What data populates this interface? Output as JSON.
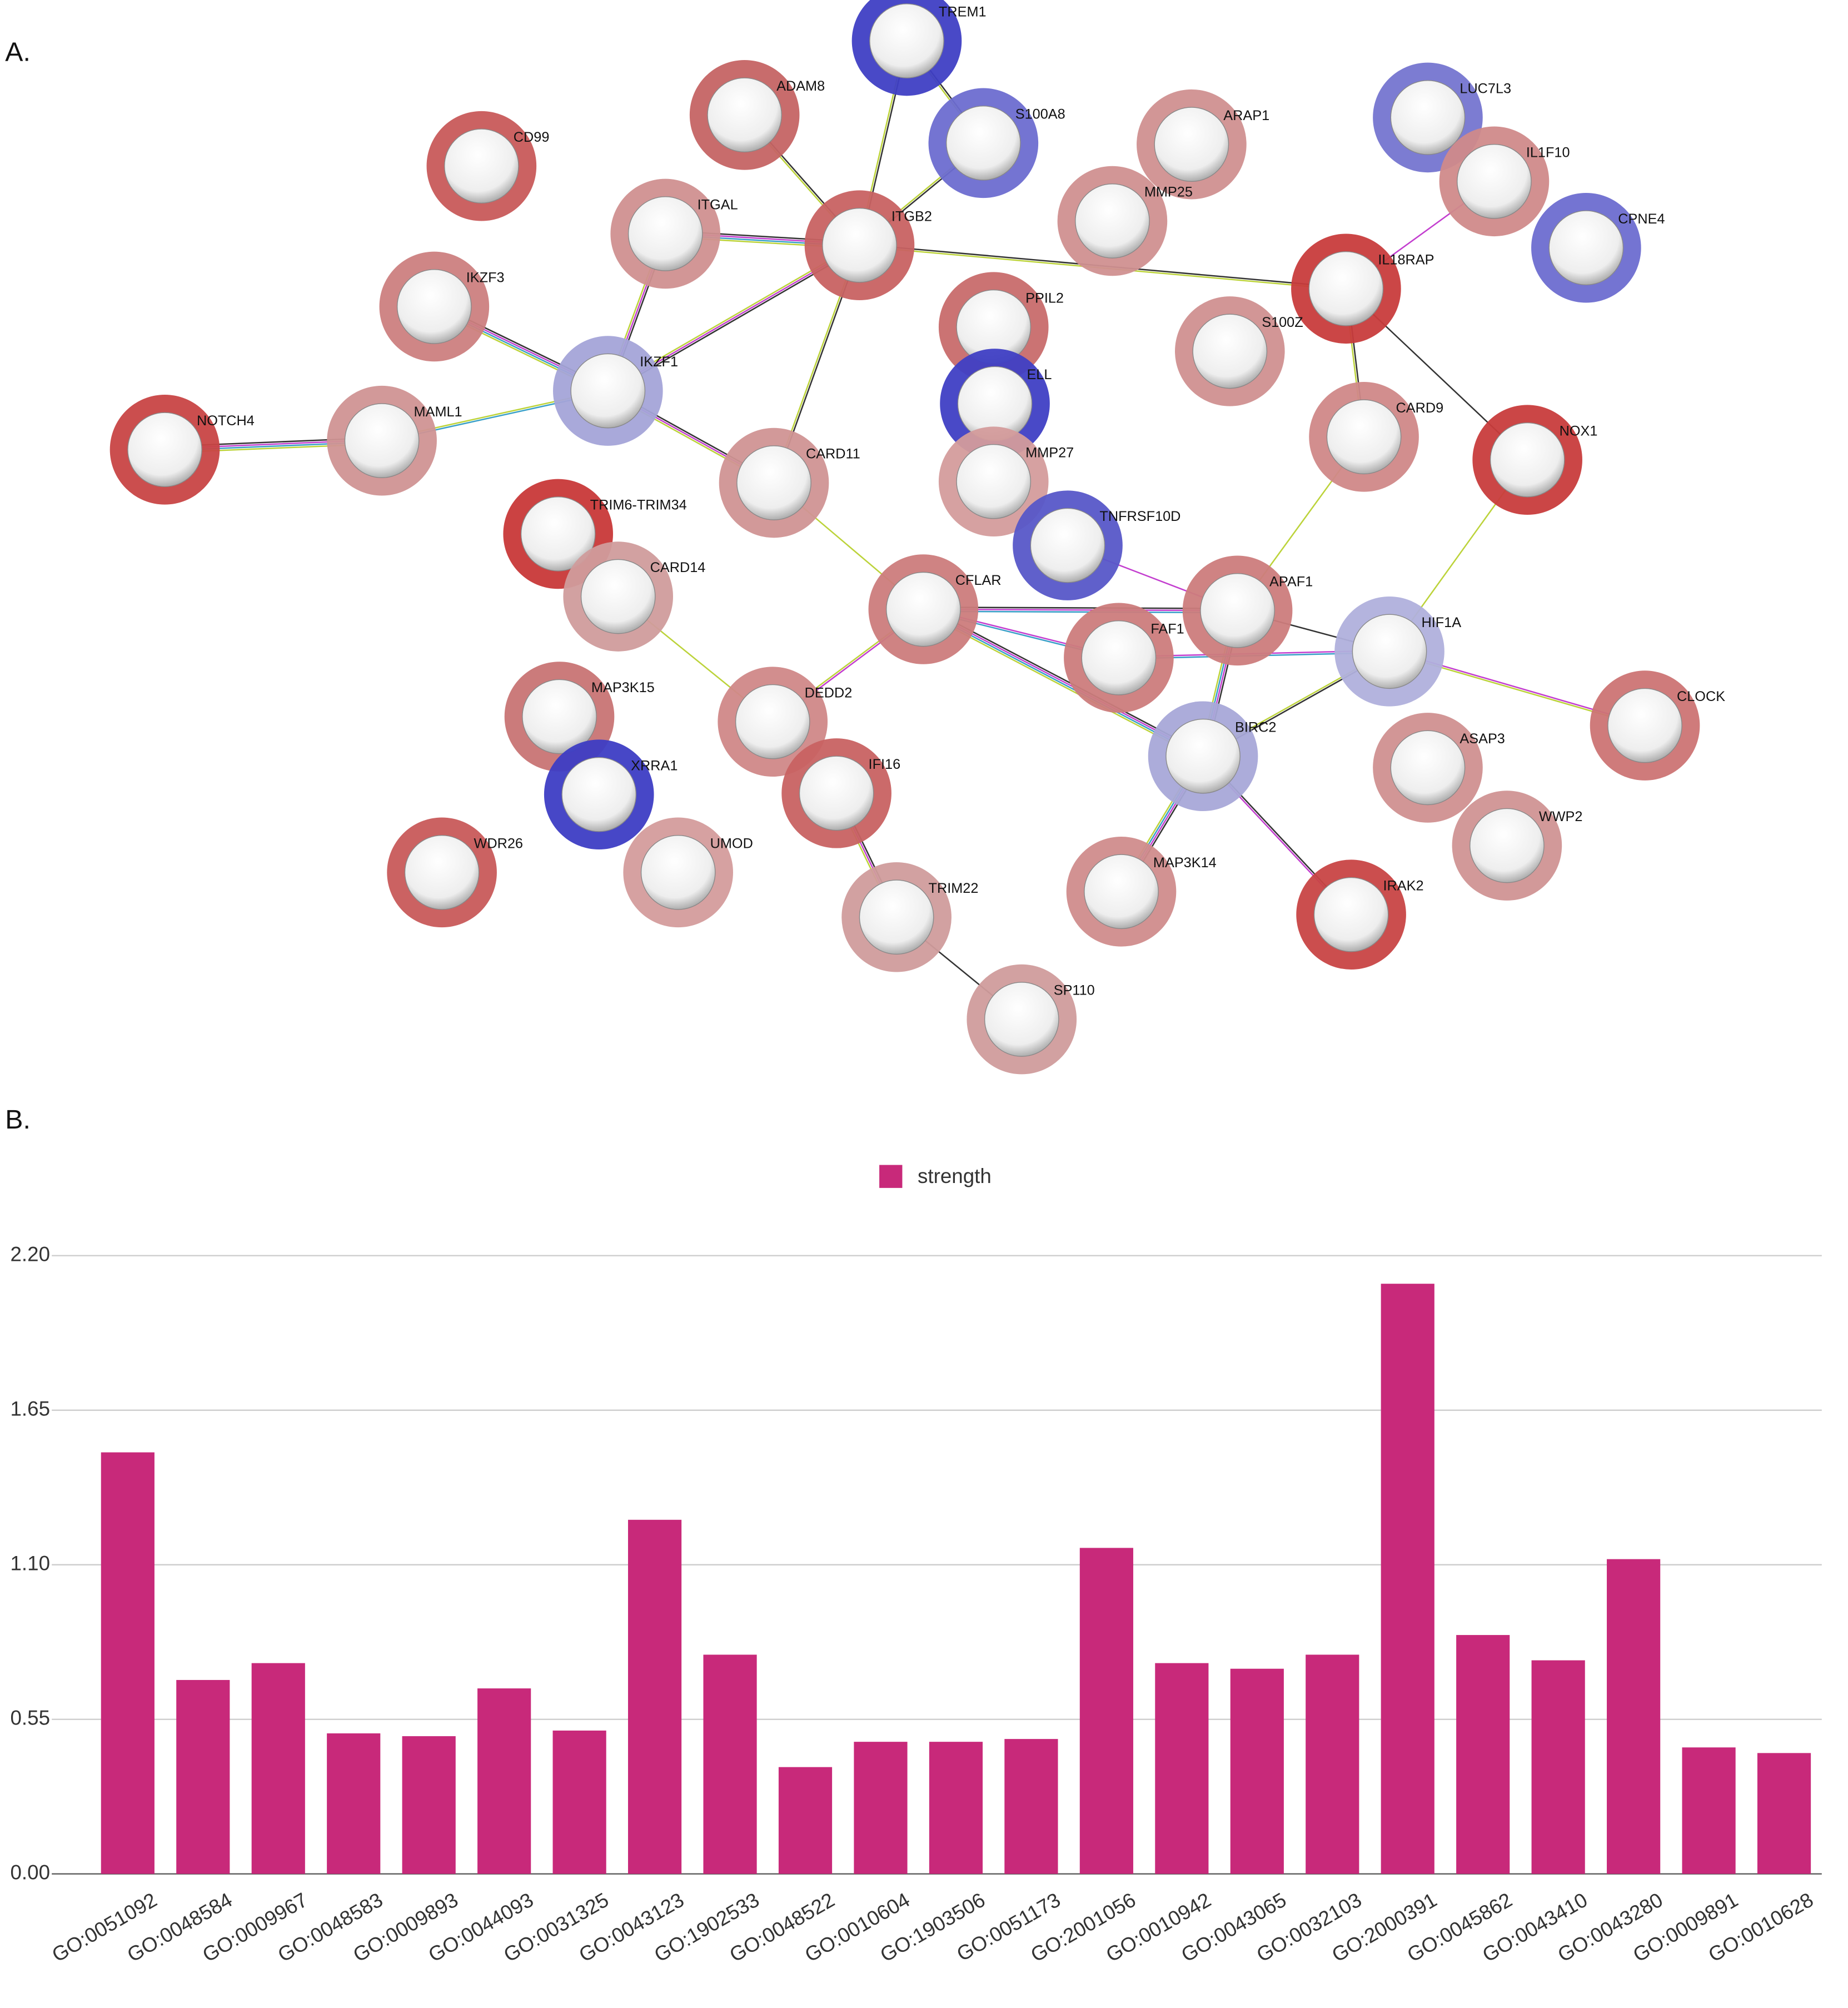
{
  "panel_labels": [
    "A.",
    "B."
  ],
  "network": {
    "nodes": [
      {
        "label": "TREM1",
        "color": "#3f3fc4"
      },
      {
        "label": "ADAM8",
        "color": "#c56464"
      },
      {
        "label": "S100A8",
        "color": "#6d6dd0"
      },
      {
        "label": "CD99",
        "color": "#c85a5a"
      },
      {
        "label": "ARAP1",
        "color": "#d09090"
      },
      {
        "label": "LUC7L3",
        "color": "#7575d0"
      },
      {
        "label": "IL1F10",
        "color": "#d08a8a"
      },
      {
        "label": "MMP25",
        "color": "#d09090"
      },
      {
        "label": "ITGAL",
        "color": "#d09090"
      },
      {
        "label": "ITGB2",
        "color": "#c86262"
      },
      {
        "label": "CPNE4",
        "color": "#6d6dd0"
      },
      {
        "label": "IL18RAP",
        "color": "#c83c3c"
      },
      {
        "label": "IKZF3",
        "color": "#cc8080"
      },
      {
        "label": "PPIL2",
        "color": "#c86c6c"
      },
      {
        "label": "S100Z",
        "color": "#d09090"
      },
      {
        "label": "IKZF1",
        "color": "#a4a4d8"
      },
      {
        "label": "ELL",
        "color": "#3f3fc4"
      },
      {
        "label": "NOTCH4",
        "color": "#c84444"
      },
      {
        "label": "MAML1",
        "color": "#d09494"
      },
      {
        "label": "CARD9",
        "color": "#d08888"
      },
      {
        "label": "NOX1",
        "color": "#c83c3c"
      },
      {
        "label": "CARD11",
        "color": "#d09494"
      },
      {
        "label": "MMP27",
        "color": "#d49c9c"
      },
      {
        "label": "TRIM6-TRIM34",
        "color": "#c83838"
      },
      {
        "label": "TNFRSF10D",
        "color": "#5757c8"
      },
      {
        "label": "CARD14",
        "color": "#d09c9c"
      },
      {
        "label": "CFLAR",
        "color": "#cc7c7c"
      },
      {
        "label": "APAF1",
        "color": "#cc7c7c"
      },
      {
        "label": "FAF1",
        "color": "#cc7c7c"
      },
      {
        "label": "HIF1A",
        "color": "#b0b0dc"
      },
      {
        "label": "MAP3K15",
        "color": "#c87474"
      },
      {
        "label": "DEDD2",
        "color": "#d08888"
      },
      {
        "label": "CLOCK",
        "color": "#cc7474"
      },
      {
        "label": "BIRC2",
        "color": "#a8a8d8"
      },
      {
        "label": "ASAP3",
        "color": "#d09090"
      },
      {
        "label": "XRRA1",
        "color": "#3d3dc4"
      },
      {
        "label": "IFI16",
        "color": "#c86262"
      },
      {
        "label": "WWP2",
        "color": "#d09494"
      },
      {
        "label": "WDR26",
        "color": "#c85a5a"
      },
      {
        "label": "UMOD",
        "color": "#d49c9c"
      },
      {
        "label": "MAP3K14",
        "color": "#d08c8c"
      },
      {
        "label": "TRIM22",
        "color": "#d09c9c"
      },
      {
        "label": "IRAK2",
        "color": "#c84444"
      },
      {
        "label": "SP110",
        "color": "#d09c9c"
      }
    ]
  },
  "chart_data": {
    "type": "bar",
    "categories": [
      "GO:0051092",
      "GO:0048584",
      "GO:0009967",
      "GO:0048583",
      "GO:0009893",
      "GO:0044093",
      "GO:0031325",
      "GO:0043123",
      "GO:1902533",
      "GO:0048522",
      "GO:0010604",
      "GO:1903506",
      "GO:0051173",
      "GO:2001056",
      "GO:0010942",
      "GO:0043065",
      "GO:0032103",
      "GO:2000391",
      "GO:0045862",
      "GO:0043410",
      "GO:0043280",
      "GO:0009891",
      "GO:0010628"
    ],
    "series": [
      {
        "name": "strength",
        "color": "#c8297a",
        "values": [
          1.5,
          0.69,
          0.75,
          0.5,
          0.49,
          0.66,
          0.51,
          1.26,
          0.78,
          0.38,
          0.47,
          0.47,
          0.48,
          1.16,
          0.75,
          0.73,
          0.78,
          2.1,
          0.85,
          0.76,
          1.12,
          0.45,
          0.43
        ]
      }
    ],
    "ylim": [
      0,
      2.2
    ],
    "yticks": [
      {
        "value": 0,
        "label": "0.00"
      },
      {
        "value": 0.55,
        "label": "0.55"
      },
      {
        "value": 1.1,
        "label": "1.10"
      },
      {
        "value": 1.65,
        "label": "1.65"
      },
      {
        "value": 2.2,
        "label": "2.20"
      }
    ],
    "grid": true,
    "legend": "top"
  }
}
